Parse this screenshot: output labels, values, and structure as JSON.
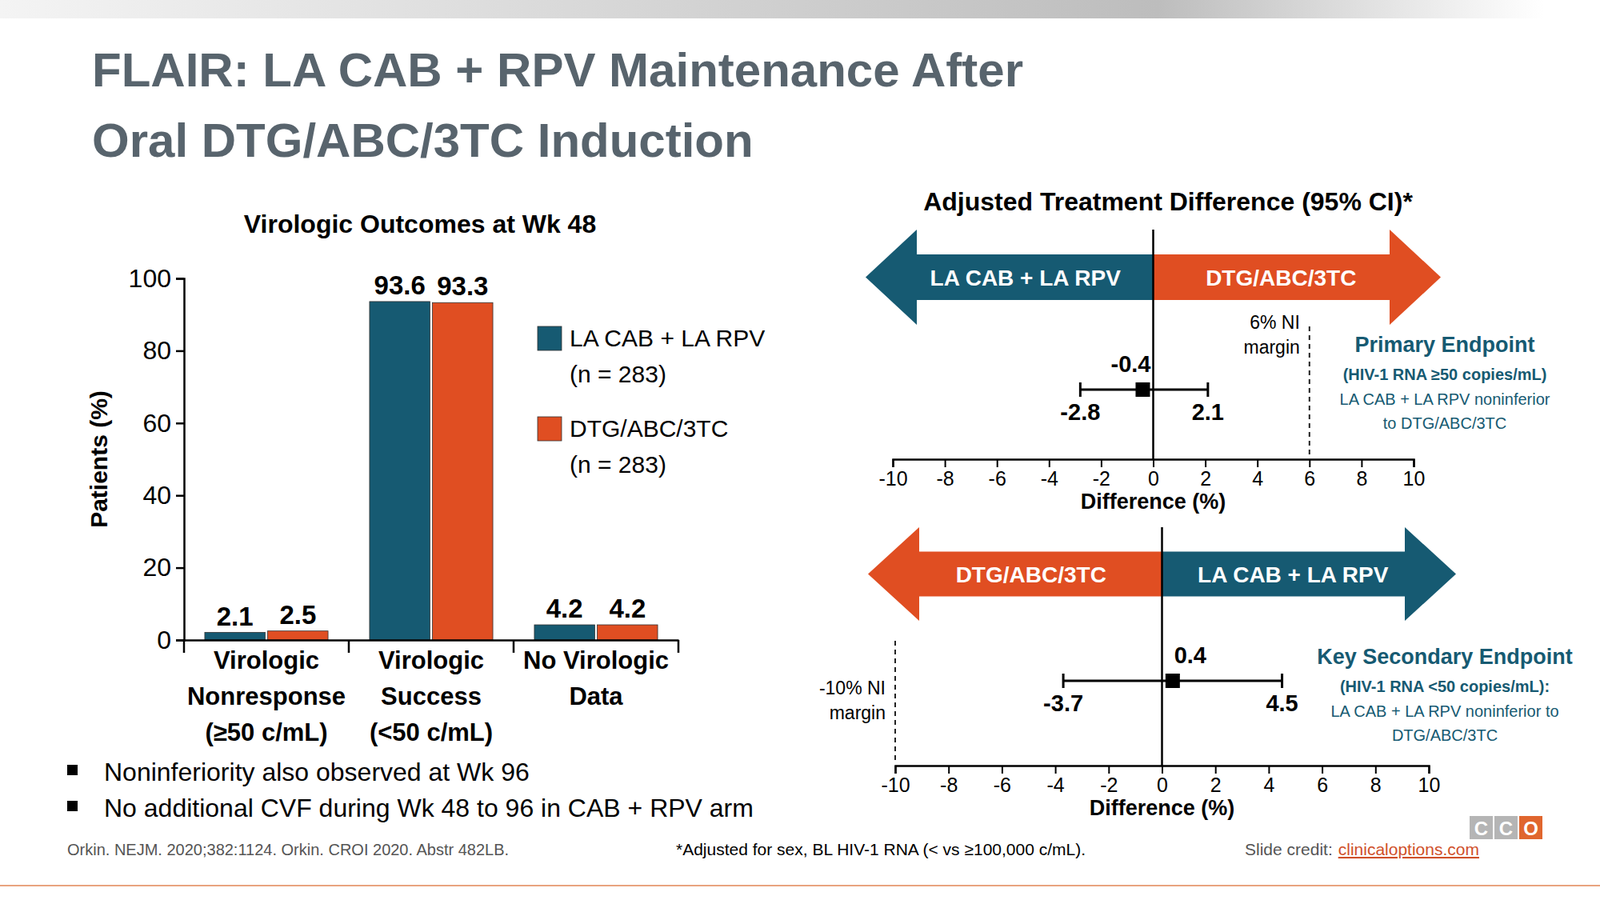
{
  "title": "FLAIR: LA CAB + RPV Maintenance After\nOral DTG/ABC/3TC Induction",
  "bullets": [
    "Noninferiority also observed at Wk 96",
    "No additional CVF during Wk 48 to 96 in CAB + RPV arm"
  ],
  "references": "Orkin. NEJM. 2020;382:1124. Orkin. CROI 2020. Abstr 482LB.",
  "footnote": "*Adjusted for sex, BL HIV-1 RNA (< vs ≥100,000 c/mL).",
  "credit": {
    "label": "Slide credit:",
    "link": "clinicaloptions.com"
  },
  "logo": "CCO",
  "chart_data": [
    {
      "type": "bar",
      "title": "Virologic Outcomes at Wk 48",
      "categories": [
        "Virologic\nNonresponse\n(≥50 c/mL)",
        "Virologic\nSuccess\n(<50 c/mL)",
        "No Virologic\nData"
      ],
      "ylabel": "Patients (%)",
      "ylim": [
        0,
        100
      ],
      "yticks": [
        0,
        20,
        40,
        60,
        80,
        100
      ],
      "grid": false,
      "legend": "upper right",
      "data_labels": true,
      "series": [
        {
          "name": "LA CAB + LA RPV\n(n = 283)",
          "color": "#165a72",
          "values": [
            2.1,
            93.6,
            4.2
          ]
        },
        {
          "name": "DTG/ABC/3TC\n(n = 283)",
          "color": "#e04e22",
          "values": [
            2.5,
            93.3,
            4.2
          ]
        }
      ]
    },
    {
      "type": "forest",
      "title": "Adjusted Treatment Difference (95% CI)*",
      "arrows": [
        {
          "label": "LA CAB + LA RPV",
          "color": "#165a72"
        },
        {
          "label": "DTG/ABC/3TC",
          "color": "#e04e22"
        }
      ],
      "estimate": -0.4,
      "ci": [
        -2.8,
        2.1
      ],
      "reference": {
        "value": 6,
        "label": "6% NI\nmargin"
      },
      "endpoint": {
        "title": "Primary Endpoint",
        "subtitle": "(HIV-1 RNA ≥50 copies/mL)",
        "text": "LA CAB + LA RPV noninferior\nto DTG/ABC/3TC"
      },
      "xlabel": "Difference (%)",
      "xlim": [
        -10,
        10
      ],
      "xticks": [
        -10,
        -8,
        -6,
        -4,
        -2,
        0,
        2,
        4,
        6,
        8,
        10
      ],
      "data_labels": true
    },
    {
      "type": "forest",
      "arrows": [
        {
          "label": "DTG/ABC/3TC",
          "color": "#e04e22"
        },
        {
          "label": "LA CAB + LA RPV",
          "color": "#165a72"
        }
      ],
      "estimate": 0.4,
      "ci": [
        -3.7,
        4.5
      ],
      "reference": {
        "value": -10,
        "label": "-10% NI\nmargin"
      },
      "endpoint": {
        "title": "Key Secondary Endpoint",
        "subtitle": "(HIV-1 RNA <50 copies/mL):",
        "text": "LA CAB + LA RPV noninferior to\nDTG/ABC/3TC"
      },
      "xlabel": "Difference (%)",
      "xlim": [
        -10,
        10
      ],
      "xticks": [
        -10,
        -8,
        -6,
        -4,
        -2,
        0,
        2,
        4,
        6,
        8,
        10
      ],
      "data_labels": true
    }
  ]
}
